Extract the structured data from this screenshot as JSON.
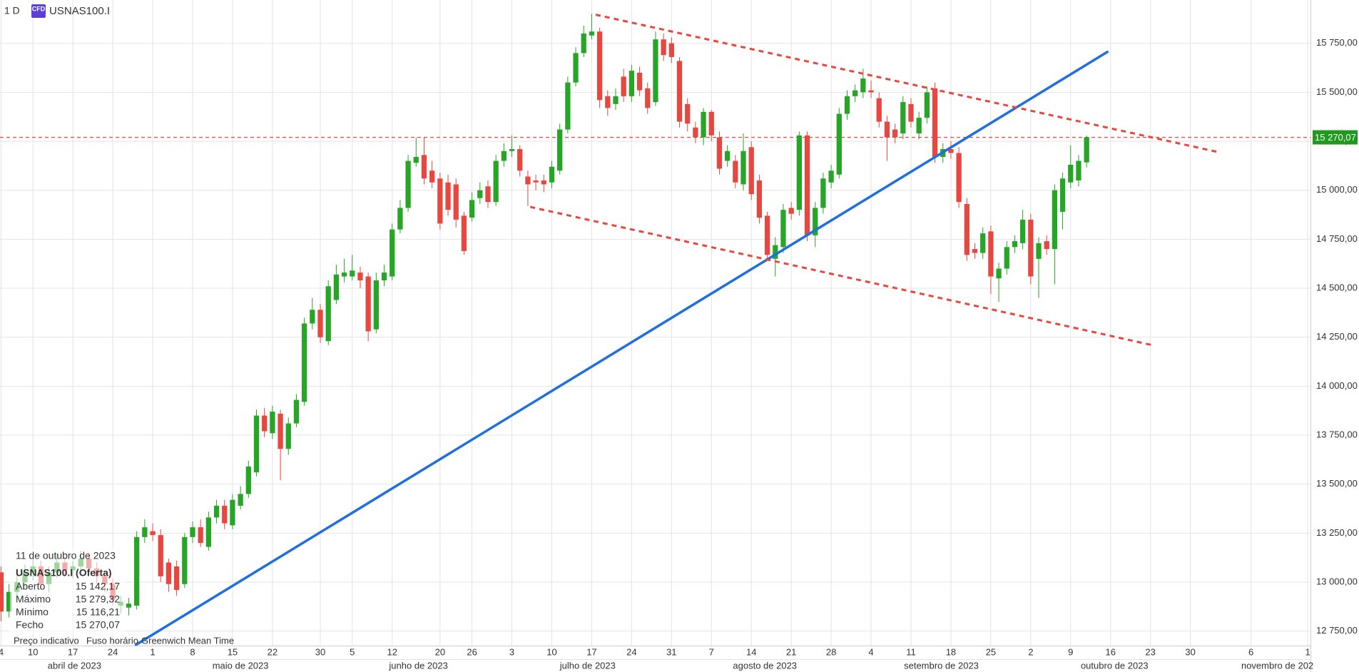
{
  "header": {
    "interval": "1 D",
    "badge": "CFD",
    "symbol": "USNAS100.I"
  },
  "info_panel": {
    "date": "11 de outubro de 2023",
    "instrument": "USNAS100.I (Oferta)",
    "rows": [
      {
        "name": "Aberto",
        "value": "15 142,17"
      },
      {
        "name": "Máximo",
        "value": "15 279,32"
      },
      {
        "name": "Mínimo",
        "value": "15 116,21"
      },
      {
        "name": "Fecho",
        "value": "15 270,07"
      }
    ]
  },
  "footer": {
    "items": [
      "Preço indicativo",
      "Fuso horário",
      "Greenwich Mean Time"
    ]
  },
  "chart_data": {
    "type": "candlestick",
    "up_color": "#26a526",
    "down_color": "#e8473f",
    "grid": true,
    "open": [
      13050,
      12850,
      12950,
      13000,
      13050,
      13080,
      12990,
      13050,
      13100,
      13060,
      13080,
      13120,
      13070,
      13030,
      12990,
      12880,
      12870,
      12880,
      13230,
      13260,
      13240,
      13100,
      13080,
      12990,
      13230,
      13280,
      13180,
      13330,
      13390,
      13290,
      13390,
      13450,
      13560,
      13850,
      13760,
      13860,
      13680,
      13810,
      13920,
      14320,
      14390,
      14230,
      14440,
      14560,
      14560,
      14580,
      14560,
      14290,
      14540,
      14560,
      14800,
      14910,
      15140,
      15180,
      15100,
      15060,
      15040,
      15030,
      14870,
      14860,
      14960,
      15020,
      14940,
      15150,
      15200,
      15210,
      15070,
      15050,
      15050,
      15040,
      15100,
      15310,
      15550,
      15700,
      15790,
      15810,
      15480,
      15440,
      15580,
      15480,
      15600,
      15520,
      15450,
      15770,
      15750,
      15660,
      15440,
      15320,
      15270,
      15400,
      15270,
      15150,
      15150,
      15030,
      15220,
      15050,
      14870,
      14650,
      14710,
      14910,
      14900,
      15280,
      14770,
      14910,
      15040,
      15080,
      15390,
      15480,
      15500,
      15510,
      15470,
      15350,
      15310,
      15290,
      15440,
      15290,
      15370,
      15520,
      15170,
      15210,
      15190,
      14930,
      14700,
      14680,
      14790,
      14550,
      14600,
      14710,
      14730,
      14850,
      14650,
      14740,
      14700,
      14890,
      15040,
      15050,
      15142.17
    ],
    "high": [
      13080,
      12990,
      13040,
      13090,
      13120,
      13110,
      13080,
      13140,
      13130,
      13110,
      13160,
      13150,
      13100,
      13060,
      13020,
      12930,
      12920,
      13260,
      13320,
      13300,
      13270,
      13120,
      13110,
      13250,
      13310,
      13320,
      13360,
      13420,
      13420,
      13450,
      13490,
      13620,
      13880,
      13890,
      13900,
      13880,
      13840,
      13960,
      14350,
      14450,
      14420,
      14540,
      14620,
      14650,
      14670,
      14610,
      14580,
      14580,
      14620,
      14830,
      14950,
      15180,
      15270,
      15270,
      15150,
      15090,
      15080,
      15060,
      14890,
      14990,
      15040,
      15050,
      15180,
      15240,
      15280,
      15230,
      15100,
      15080,
      15080,
      15150,
      15340,
      15580,
      15730,
      15840,
      15900,
      15830,
      15510,
      15520,
      15620,
      15640,
      15630,
      15550,
      15810,
      15800,
      15780,
      15680,
      15470,
      15350,
      15420,
      15410,
      15300,
      15230,
      15180,
      15290,
      15250,
      15080,
      14890,
      14760,
      14930,
      14940,
      15300,
      15300,
      14940,
      15090,
      15130,
      15420,
      15510,
      15540,
      15620,
      15560,
      15500,
      15380,
      15340,
      15480,
      15470,
      15400,
      15530,
      15550,
      15240,
      15250,
      15220,
      14960,
      14730,
      14810,
      14820,
      14630,
      14740,
      14770,
      14900,
      14880,
      14760,
      14770,
      15030,
      15090,
      15230,
      15180,
      15279.32
    ],
    "low": [
      12800,
      12820,
      12920,
      12970,
      13010,
      12960,
      12950,
      13020,
      13030,
      13020,
      13050,
      13040,
      12990,
      12950,
      12880,
      12840,
      12830,
      12860,
      13200,
      13210,
      13000,
      12950,
      12930,
      12970,
      13200,
      13180,
      13160,
      13300,
      13270,
      13270,
      13370,
      13430,
      13540,
      13740,
      13730,
      13520,
      13650,
      13790,
      13900,
      14290,
      14220,
      14210,
      14420,
      14530,
      14540,
      14500,
      14230,
      14270,
      14510,
      14540,
      14780,
      14890,
      15120,
      15030,
      15010,
      14800,
      14870,
      14810,
      14670,
      14840,
      14930,
      14910,
      14920,
      15120,
      15170,
      15070,
      14920,
      15000,
      14990,
      15010,
      15080,
      15290,
      15530,
      15680,
      15770,
      15420,
      15380,
      15410,
      15450,
      15450,
      15480,
      15390,
      15430,
      15660,
      15650,
      15320,
      15300,
      15240,
      15230,
      15250,
      15080,
      15120,
      15010,
      15000,
      14950,
      14830,
      14640,
      14560,
      14680,
      14850,
      14870,
      14740,
      14710,
      14880,
      15010,
      15060,
      15360,
      15450,
      15470,
      15470,
      15320,
      15150,
      15240,
      15260,
      15320,
      15260,
      15340,
      15140,
      15140,
      15160,
      14910,
      14640,
      14650,
      14650,
      14470,
      14430,
      14570,
      14680,
      14700,
      14520,
      14450,
      14670,
      14520,
      14800,
      15010,
      15020,
      15116.21
    ],
    "close": [
      12850,
      12950,
      13000,
      13050,
      13080,
      12990,
      13050,
      13100,
      13060,
      13080,
      13120,
      13070,
      13030,
      12990,
      12910,
      12900,
      12890,
      13230,
      13280,
      13240,
      13030,
      12990,
      12960,
      13230,
      13280,
      13200,
      13330,
      13390,
      13300,
      13420,
      13450,
      13590,
      13850,
      13770,
      13870,
      13680,
      13810,
      13930,
      14320,
      14390,
      14250,
      14510,
      14570,
      14580,
      14590,
      14540,
      14280,
      14540,
      14580,
      14800,
      14910,
      15150,
      15170,
      15060,
      15040,
      14830,
      14900,
      14850,
      14690,
      14950,
      15000,
      14940,
      15150,
      15200,
      15210,
      15100,
      15030,
      15040,
      15030,
      15120,
      15310,
      15550,
      15700,
      15800,
      15810,
      15460,
      15420,
      15480,
      15480,
      15610,
      15510,
      15420,
      15770,
      15690,
      15680,
      15350,
      15340,
      15270,
      15400,
      15280,
      15110,
      15200,
      15040,
      15200,
      14980,
      14860,
      14670,
      14720,
      14900,
      14880,
      15280,
      14770,
      14910,
      15060,
      15100,
      15390,
      15480,
      15510,
      15570,
      15500,
      15350,
      15270,
      15270,
      15450,
      15350,
      15370,
      15500,
      15170,
      15210,
      15190,
      14940,
      14670,
      14680,
      14780,
      14560,
      14600,
      14710,
      14740,
      14850,
      14560,
      14730,
      14700,
      15000,
      15060,
      15130,
      15150,
      15270.07
    ],
    "last_price": {
      "value": 15270.07,
      "label": "15 270,07"
    },
    "last_price_color": "#1f9a1f",
    "xlim": [
      -0.13,
      164.05
    ],
    "ylim": [
      12676,
      15971
    ],
    "yticks": [
      {
        "value": 12750,
        "label": "12 750,00"
      },
      {
        "value": 13000,
        "label": "13 000,00"
      },
      {
        "value": 13250,
        "label": "13 250,00"
      },
      {
        "value": 13500,
        "label": "13 500,00"
      },
      {
        "value": 13750,
        "label": "13 750,00"
      },
      {
        "value": 14000,
        "label": "14 000,00"
      },
      {
        "value": 14250,
        "label": "14 250,00"
      },
      {
        "value": 14500,
        "label": "14 500,00"
      },
      {
        "value": 14750,
        "label": "14 750,00"
      },
      {
        "value": 15000,
        "label": "15 000,00"
      },
      {
        "value": 15250,
        "label": "15 250,00"
      },
      {
        "value": 15500,
        "label": "15 500,00"
      },
      {
        "value": 15750,
        "label": "15 750,00"
      }
    ],
    "xticks": [
      {
        "value": 0,
        "label": "4"
      },
      {
        "value": 4,
        "label": "10"
      },
      {
        "value": 9,
        "label": "17"
      },
      {
        "value": 14,
        "label": "24"
      },
      {
        "value": 19,
        "label": "1"
      },
      {
        "value": 24,
        "label": "8"
      },
      {
        "value": 29,
        "label": "15"
      },
      {
        "value": 34,
        "label": "22"
      },
      {
        "value": 40,
        "label": "30"
      },
      {
        "value": 44,
        "label": "5"
      },
      {
        "value": 49,
        "label": "12"
      },
      {
        "value": 55,
        "label": "20"
      },
      {
        "value": 59,
        "label": "26"
      },
      {
        "value": 64,
        "label": "3"
      },
      {
        "value": 69,
        "label": "10"
      },
      {
        "value": 74,
        "label": "17"
      },
      {
        "value": 79,
        "label": "24"
      },
      {
        "value": 84,
        "label": "31"
      },
      {
        "value": 89,
        "label": "7"
      },
      {
        "value": 94,
        "label": "14"
      },
      {
        "value": 99,
        "label": "21"
      },
      {
        "value": 104,
        "label": "28"
      },
      {
        "value": 109,
        "label": "4"
      },
      {
        "value": 114,
        "label": "11"
      },
      {
        "value": 119,
        "label": "18"
      },
      {
        "value": 124,
        "label": "25"
      },
      {
        "value": 129,
        "label": "2"
      },
      {
        "value": 134,
        "label": "9"
      },
      {
        "value": 139,
        "label": "16"
      },
      {
        "value": 144,
        "label": "23"
      },
      {
        "value": 149,
        "label": "30"
      },
      {
        "value": 156.6,
        "label": "6"
      },
      {
        "value": 163.7,
        "label": "1"
      }
    ],
    "month_ticks": [
      {
        "value": 9.2,
        "label": "abril de 2023"
      },
      {
        "value": 30,
        "label": "maio de 2023"
      },
      {
        "value": 52.3,
        "label": "junho de 2023"
      },
      {
        "value": 73.5,
        "label": "julho de 2023"
      },
      {
        "value": 95.7,
        "label": "agosto de 2023"
      },
      {
        "value": 117.8,
        "label": "setembro de 2023"
      },
      {
        "value": 139.5,
        "label": "outubro de 2023"
      },
      {
        "value": 159.9,
        "label": "novembro de 202"
      }
    ],
    "drawings": [
      {
        "color": "#1f6fe0",
        "dashed": false,
        "points": [
          [
            16.9,
            12680
          ],
          [
            138.6,
            15706
          ]
        ]
      },
      {
        "color": "#e8473f",
        "dashed": true,
        "points": [
          [
            74.5,
            15896
          ],
          [
            152.7,
            15193
          ]
        ]
      },
      {
        "color": "#e8473f",
        "dashed": true,
        "points": [
          [
            66.3,
            14915
          ],
          [
            144.4,
            14208
          ]
        ]
      }
    ]
  }
}
